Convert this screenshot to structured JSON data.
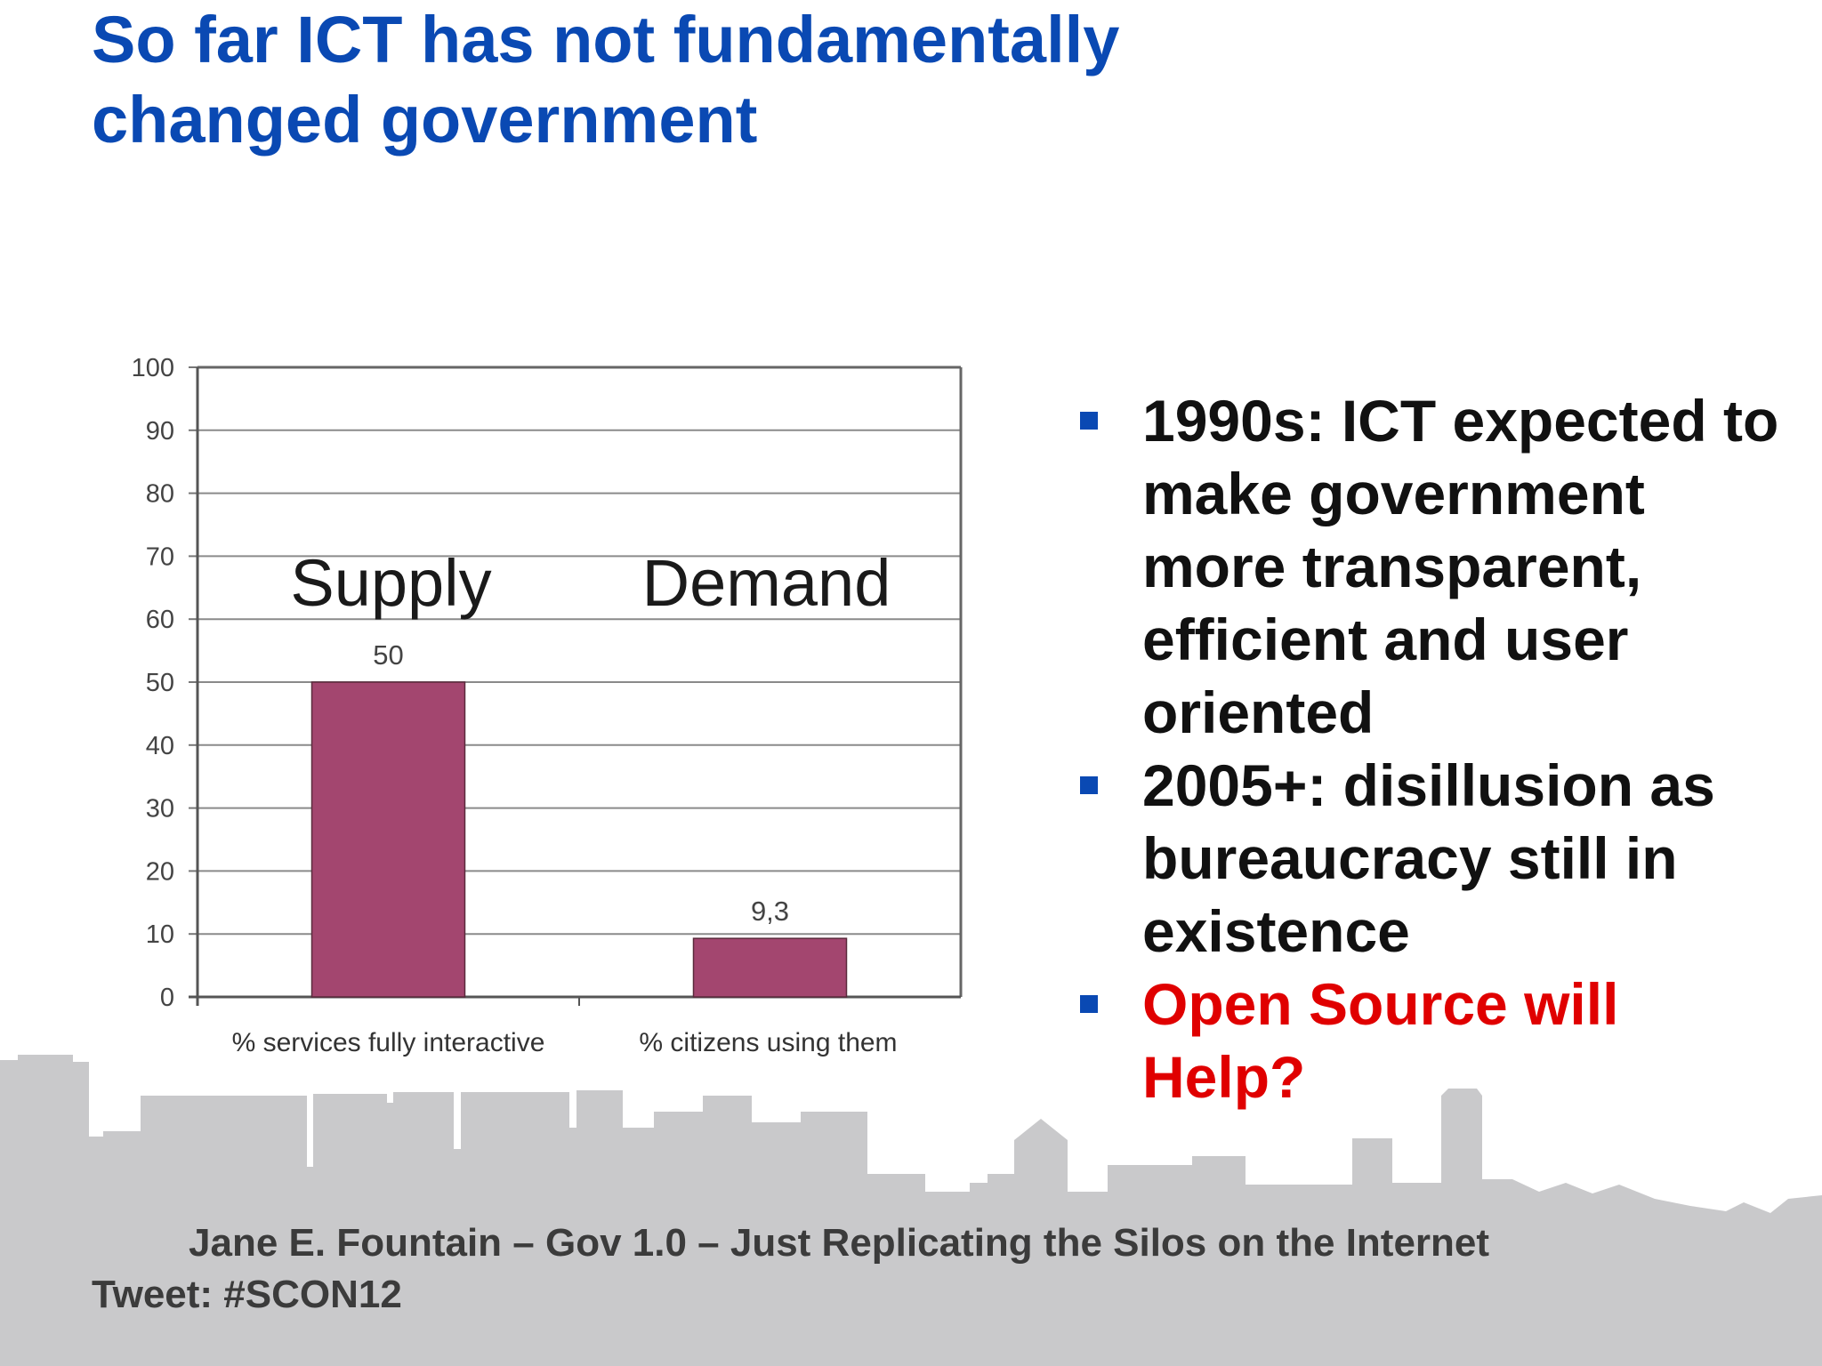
{
  "slide": {
    "title_lines": [
      "So far ICT has not fundamentally",
      "changed government"
    ],
    "bullets": [
      "1990s: ICT expected to make government more transparent, efficient and user oriented",
      "2005+: disillusion as bureaucracy still in existence",
      "Open Source will Help?"
    ],
    "footer": {
      "citation": "Jane E. Fountain – Gov 1.0 – Just Replicating the Silos on the Internet",
      "tweet": "Tweet: #SCON12"
    }
  },
  "colors": {
    "title": "#0a49b3",
    "bullet_marker": "#0a49b3",
    "highlight": "#e00000",
    "bar": "#a3466f",
    "skyline": "#c9c9cb"
  },
  "chart_data": {
    "type": "bar",
    "categories": [
      "% services fully interactive",
      "% citizens using them"
    ],
    "values": [
      50,
      9.3
    ],
    "value_labels": [
      "50",
      "9,3"
    ],
    "headers": [
      "Supply",
      "Demand"
    ],
    "ylim": [
      0,
      100
    ],
    "yticks": [
      0,
      10,
      20,
      30,
      40,
      50,
      60,
      70,
      80,
      90,
      100
    ],
    "grid": true,
    "title": "",
    "xlabel": "",
    "ylabel": ""
  }
}
